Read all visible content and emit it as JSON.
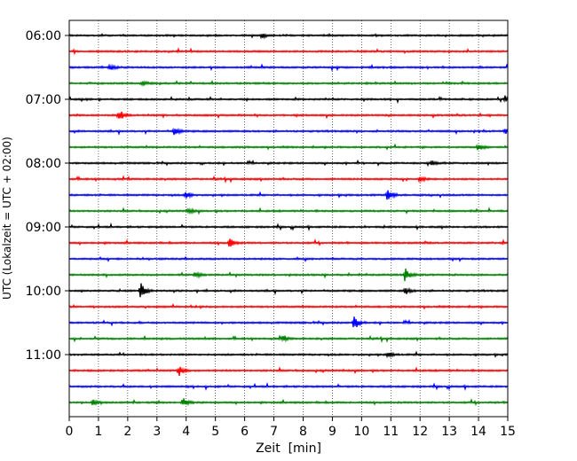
{
  "chart_data": {
    "type": "line",
    "xlabel": "Zeit  [min]",
    "ylabel": "UTC (Lokalzeit = UTC + 02:00)",
    "xlim": [
      0,
      15
    ],
    "x_ticks": [
      "0",
      "1",
      "2",
      "3",
      "4",
      "5",
      "6",
      "7",
      "8",
      "9",
      "10",
      "11",
      "12",
      "13",
      "14",
      "15"
    ],
    "y_tick_labels": [
      "06:00",
      "07:00",
      "08:00",
      "09:00",
      "10:00",
      "11:00"
    ],
    "grid": "vertical dotted lines at each minute",
    "trace_colors": [
      "#000000",
      "#ff0000",
      "#0000ff",
      "#008000"
    ],
    "traces": [
      {
        "start": "06:00",
        "color": "#000000",
        "events": [
          {
            "t": 6.6,
            "a": 3
          }
        ]
      },
      {
        "start": "06:15",
        "color": "#ff0000",
        "events": []
      },
      {
        "start": "06:30",
        "color": "#0000ff",
        "events": [
          {
            "t": 1.4,
            "a": 3
          }
        ]
      },
      {
        "start": "06:45",
        "color": "#008000",
        "events": [
          {
            "t": 2.5,
            "a": 3
          }
        ]
      },
      {
        "start": "07:00",
        "color": "#000000",
        "events": [
          {
            "t": 14.9,
            "a": 4
          }
        ]
      },
      {
        "start": "07:15",
        "color": "#ff0000",
        "events": [
          {
            "t": 1.7,
            "a": 5
          }
        ]
      },
      {
        "start": "07:30",
        "color": "#0000ff",
        "events": [
          {
            "t": 3.6,
            "a": 5
          },
          {
            "t": 14.9,
            "a": 3
          }
        ]
      },
      {
        "start": "07:45",
        "color": "#008000",
        "events": [
          {
            "t": 14.0,
            "a": 4
          }
        ]
      },
      {
        "start": "08:00",
        "color": "#000000",
        "events": [
          {
            "t": 12.4,
            "a": 3
          }
        ]
      },
      {
        "start": "08:15",
        "color": "#ff0000",
        "events": [
          {
            "t": 12.0,
            "a": 3
          }
        ]
      },
      {
        "start": "08:30",
        "color": "#0000ff",
        "events": [
          {
            "t": 4.0,
            "a": 4
          },
          {
            "t": 10.9,
            "a": 7
          }
        ]
      },
      {
        "start": "08:45",
        "color": "#008000",
        "events": [
          {
            "t": 4.1,
            "a": 3
          }
        ]
      },
      {
        "start": "09:00",
        "color": "#000000",
        "events": []
      },
      {
        "start": "09:15",
        "color": "#ff0000",
        "events": [
          {
            "t": 5.5,
            "a": 6
          }
        ]
      },
      {
        "start": "09:30",
        "color": "#0000ff",
        "events": []
      },
      {
        "start": "09:45",
        "color": "#008000",
        "events": [
          {
            "t": 4.3,
            "a": 4
          },
          {
            "t": 11.5,
            "a": 9
          }
        ]
      },
      {
        "start": "10:00",
        "color": "#000000",
        "events": [
          {
            "t": 2.45,
            "a": 11
          },
          {
            "t": 11.5,
            "a": 4
          }
        ]
      },
      {
        "start": "10:15",
        "color": "#ff0000",
        "events": []
      },
      {
        "start": "10:30",
        "color": "#0000ff",
        "events": [
          {
            "t": 9.75,
            "a": 8
          }
        ]
      },
      {
        "start": "10:45",
        "color": "#008000",
        "events": [
          {
            "t": 7.3,
            "a": 3
          }
        ]
      },
      {
        "start": "11:00",
        "color": "#000000",
        "events": [
          {
            "t": 10.9,
            "a": 3
          }
        ]
      },
      {
        "start": "11:15",
        "color": "#ff0000",
        "events": [
          {
            "t": 3.75,
            "a": 6
          }
        ]
      },
      {
        "start": "11:30",
        "color": "#0000ff",
        "events": []
      },
      {
        "start": "11:45",
        "color": "#008000",
        "events": [
          {
            "t": 3.9,
            "a": 5
          },
          {
            "t": 0.8,
            "a": 3
          }
        ]
      }
    ]
  }
}
